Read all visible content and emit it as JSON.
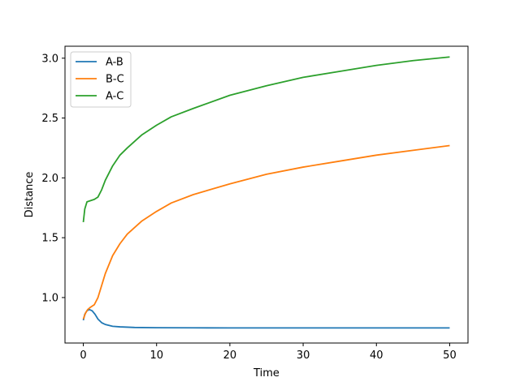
{
  "chart_data": {
    "type": "line",
    "title": "",
    "xlabel": "Time",
    "ylabel": "Distance",
    "xlim": [
      -2.5,
      52.5
    ],
    "ylim": [
      0.62,
      3.1
    ],
    "xticks": [
      0,
      10,
      20,
      30,
      40,
      50
    ],
    "xtick_labels": [
      "0",
      "10",
      "20",
      "30",
      "40",
      "50"
    ],
    "yticks": [
      1.0,
      1.5,
      2.0,
      2.5,
      3.0
    ],
    "ytick_labels": [
      "1.0",
      "1.5",
      "2.0",
      "2.5",
      "3.0"
    ],
    "grid": false,
    "legend_position": "top-left",
    "series": [
      {
        "name": "A-B",
        "color": "#1f77b4",
        "points": [
          [
            0,
            0.81
          ],
          [
            0.2,
            0.86
          ],
          [
            0.5,
            0.89
          ],
          [
            0.8,
            0.9
          ],
          [
            1.2,
            0.89
          ],
          [
            1.6,
            0.86
          ],
          [
            2.0,
            0.82
          ],
          [
            2.5,
            0.79
          ],
          [
            3,
            0.775
          ],
          [
            4,
            0.76
          ],
          [
            5,
            0.755
          ],
          [
            7,
            0.75
          ],
          [
            10,
            0.748
          ],
          [
            15,
            0.747
          ],
          [
            20,
            0.746
          ],
          [
            30,
            0.746
          ],
          [
            40,
            0.746
          ],
          [
            50,
            0.746
          ]
        ]
      },
      {
        "name": "B-C",
        "color": "#ff7f0e",
        "points": [
          [
            0,
            0.82
          ],
          [
            0.3,
            0.87
          ],
          [
            0.6,
            0.9
          ],
          [
            1.0,
            0.92
          ],
          [
            1.5,
            0.94
          ],
          [
            2.0,
            1.0
          ],
          [
            2.5,
            1.1
          ],
          [
            3,
            1.2
          ],
          [
            4,
            1.35
          ],
          [
            5,
            1.45
          ],
          [
            6,
            1.53
          ],
          [
            8,
            1.64
          ],
          [
            10,
            1.72
          ],
          [
            12,
            1.79
          ],
          [
            15,
            1.86
          ],
          [
            20,
            1.95
          ],
          [
            25,
            2.03
          ],
          [
            30,
            2.09
          ],
          [
            35,
            2.14
          ],
          [
            40,
            2.19
          ],
          [
            45,
            2.23
          ],
          [
            50,
            2.27
          ]
        ]
      },
      {
        "name": "A-C",
        "color": "#2ca02c",
        "points": [
          [
            0,
            1.63
          ],
          [
            0.2,
            1.74
          ],
          [
            0.5,
            1.8
          ],
          [
            1.0,
            1.81
          ],
          [
            1.5,
            1.82
          ],
          [
            2.0,
            1.84
          ],
          [
            2.5,
            1.9
          ],
          [
            3,
            1.98
          ],
          [
            4,
            2.1
          ],
          [
            5,
            2.19
          ],
          [
            6,
            2.25
          ],
          [
            8,
            2.36
          ],
          [
            10,
            2.44
          ],
          [
            12,
            2.51
          ],
          [
            15,
            2.58
          ],
          [
            20,
            2.69
          ],
          [
            25,
            2.77
          ],
          [
            30,
            2.84
          ],
          [
            35,
            2.89
          ],
          [
            40,
            2.94
          ],
          [
            45,
            2.98
          ],
          [
            50,
            3.01
          ]
        ]
      }
    ]
  }
}
